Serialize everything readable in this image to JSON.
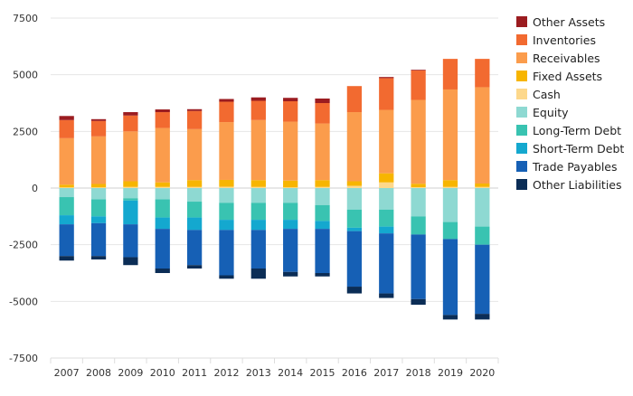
{
  "chart_data": {
    "type": "bar",
    "stacked": true,
    "grid": true,
    "legend_position": "right",
    "ylim": [
      -7500,
      7500
    ],
    "yticks": [
      {
        "value": 7500,
        "label": "7500"
      },
      {
        "value": 5000,
        "label": "5000"
      },
      {
        "value": 2500,
        "label": "2500"
      },
      {
        "value": 0,
        "label": "0"
      },
      {
        "value": -2500,
        "label": "-2500"
      },
      {
        "value": -5000,
        "label": "-5000"
      },
      {
        "value": -7500,
        "label": "-7500"
      }
    ],
    "categories": [
      "2007",
      "2008",
      "2009",
      "2010",
      "2011",
      "2012",
      "2013",
      "2014",
      "2015",
      "2016",
      "2017",
      "2018",
      "2019",
      "2020"
    ],
    "series": [
      {
        "name": "Other Assets",
        "color": "#9b1c20",
        "values": [
          180,
          80,
          150,
          120,
          80,
          120,
          150,
          150,
          200,
          0,
          50,
          30,
          0,
          0
        ]
      },
      {
        "name": "Inventories",
        "color": "#f26a30",
        "values": [
          800,
          680,
          700,
          700,
          800,
          900,
          850,
          900,
          900,
          1150,
          1400,
          1300,
          1350,
          1250
        ]
      },
      {
        "name": "Receivables",
        "color": "#fb9c4c",
        "values": [
          2050,
          2100,
          2200,
          2400,
          2250,
          2550,
          2650,
          2600,
          2500,
          3050,
          2800,
          3700,
          4000,
          4250
        ]
      },
      {
        "name": "Fixed Assets",
        "color": "#f7b500",
        "values": [
          120,
          150,
          250,
          200,
          300,
          300,
          300,
          300,
          300,
          200,
          400,
          150,
          300,
          150
        ]
      },
      {
        "name": "Cash",
        "color": "#fdd88b",
        "values": [
          30,
          30,
          50,
          50,
          50,
          60,
          50,
          30,
          50,
          100,
          250,
          40,
          50,
          50
        ]
      },
      {
        "name": "Equity",
        "color": "#8ed9d2",
        "values": [
          -400,
          -500,
          -450,
          -500,
          -600,
          -650,
          -650,
          -650,
          -750,
          -950,
          -950,
          -1250,
          -1500,
          -1700
        ]
      },
      {
        "name": "Long-Term Debt",
        "color": "#39c3b1",
        "values": [
          -800,
          -750,
          -100,
          -800,
          -700,
          -750,
          -750,
          -750,
          -700,
          -800,
          -750,
          -800,
          -750,
          -800
        ]
      },
      {
        "name": "Short-Term Debt",
        "color": "#14a8cf",
        "values": [
          -400,
          -300,
          -1050,
          -500,
          -550,
          -450,
          -450,
          -400,
          -350,
          -150,
          -300,
          0,
          0,
          0
        ]
      },
      {
        "name": "Trade Payables",
        "color": "#1660b5",
        "values": [
          -1400,
          -1450,
          -1450,
          -1750,
          -1550,
          -2000,
          -1700,
          -1900,
          -1950,
          -2450,
          -2650,
          -2850,
          -3350,
          -3050
        ]
      },
      {
        "name": "Other Liabilities",
        "color": "#0b2d56",
        "values": [
          -200,
          -150,
          -350,
          -200,
          -150,
          -150,
          -450,
          -200,
          -150,
          -300,
          -200,
          -250,
          -200,
          -250
        ]
      }
    ]
  }
}
